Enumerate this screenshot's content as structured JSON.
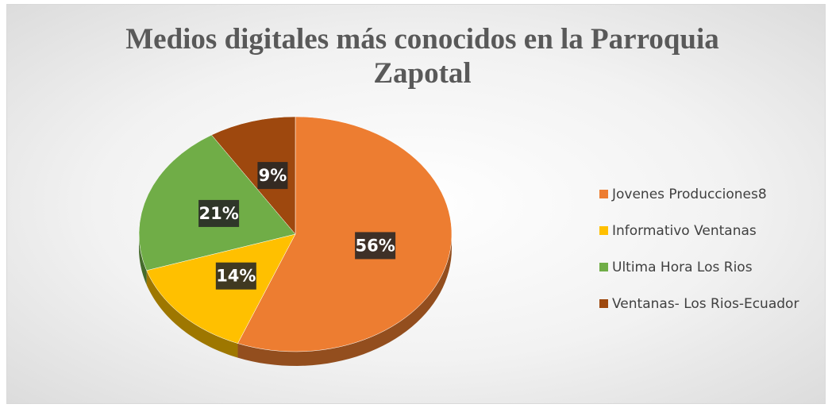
{
  "chart_data": {
    "type": "pie",
    "title": "Medios digitales más conocidos en la Parroquia Zapotal",
    "categories": [
      "Jovenes Producciones8",
      "Informativo Ventanas",
      "Ultima Hora Los Rios",
      "Ventanas- Los Rios-Ecuador"
    ],
    "values": [
      56,
      14,
      21,
      9
    ],
    "value_labels": [
      "56%",
      "14%",
      "21%",
      "9%"
    ],
    "colors": [
      "#ED7D31",
      "#FFC000",
      "#70AD47",
      "#9E480E"
    ],
    "legend": "right"
  }
}
